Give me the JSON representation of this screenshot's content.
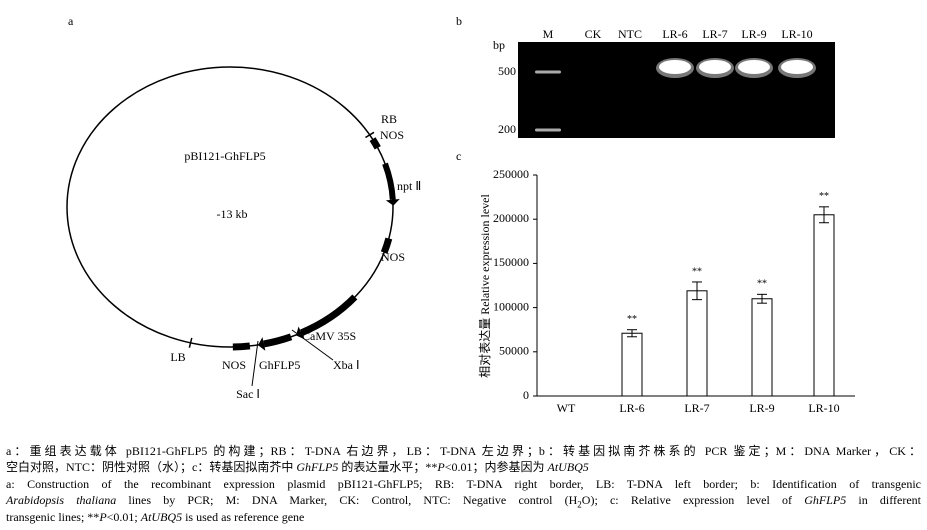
{
  "panel_labels": [
    "a",
    "b",
    "c"
  ],
  "plasmid": {
    "name": "pBI121-GhFLP5",
    "size": "-13 kb",
    "labels": [
      "RB",
      "NOS",
      "npt Ⅱ",
      "NOS",
      "CaMV 35S",
      "Xba Ⅰ",
      "NOS",
      "GhFLP5",
      "Sac Ⅰ",
      "LB"
    ]
  },
  "gel": {
    "unit": "bp",
    "size_markers": [
      500,
      200
    ],
    "lanes": [
      "M",
      "CK",
      "NTC",
      "LR-6",
      "LR-7",
      "LR-9",
      "LR-10"
    ]
  },
  "chart_data": {
    "type": "bar",
    "y_label": "相对表达量 Relative expression level",
    "categories": [
      "WT",
      "LR-6",
      "LR-7",
      "LR-9",
      "LR-10"
    ],
    "values": [
      0,
      71000,
      119000,
      110000,
      205000
    ],
    "errors": [
      0,
      4000,
      10000,
      5000,
      9000
    ],
    "significance": [
      null,
      "**",
      "**",
      "**",
      "**"
    ],
    "color": "#ffffff",
    "ylim": [
      0,
      250000
    ],
    "yticks": [
      0,
      50000,
      100000,
      150000,
      200000,
      250000
    ]
  },
  "caption": [
    [
      "a：重组表达载体 pBI121-GhFLP5 的构建；RB：T-DNA 右边界，LB：T-DNA 左边界；b：转基因拟南芥株系的 PCR 鉴定；M：DNA Marker，CK："
    ],
    [
      "空白对照，NTC：阴性对照（水）；c：转基因拟南芥中 ",
      {
        "text": "GhFLP5",
        "style": "italic"
      },
      " 的表达量水平；**",
      {
        "text": "P",
        "style": "italic"
      },
      "<0.01；内参基因为 ",
      {
        "text": "AtUBQ5",
        "style": "italic"
      }
    ],
    [
      "a: Construction of the recombinant expression plasmid pBI121-GhFLP5; RB: T-DNA right border, LB: T-DNA left border; b: Identification of transgenic"
    ],
    [
      {
        "text": "Arabidopsis thaliana",
        "style": "italic"
      },
      " lines by PCR; M: DNA Marker, CK: Control, NTC: Negative control (H",
      {
        "text": "2",
        "style": "sub"
      },
      "O); c: Relative expression level of ",
      {
        "text": "GhFLP5",
        "style": "italic"
      },
      " in different"
    ],
    [
      "transgenic lines; **",
      {
        "text": "P",
        "style": "italic"
      },
      "<0.01; ",
      {
        "text": "AtUBQ5",
        "style": "italic"
      },
      " is used as reference gene"
    ]
  ]
}
